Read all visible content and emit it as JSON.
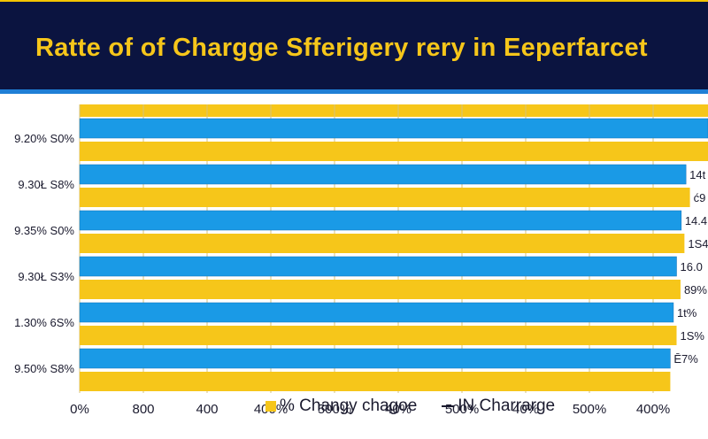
{
  "chart_data": {
    "type": "bar",
    "orientation": "horizontal",
    "title": "Ratte of of Chargge Sfferigery rery in Eeperfarcet",
    "categories": [
      "9.20% S0%",
      "9.30Ł S8%",
      "9.35% S0%",
      "9.30Ł S3%",
      "1.30% 6S%",
      "9.50% S8%"
    ],
    "series": [
      {
        "name": "IN Charrarge",
        "color": "#1a9ae6",
        "values": [
          800,
          772,
          766,
          760,
          756,
          752
        ]
      },
      {
        "name": "% Changy chagoe",
        "color": "#f6c61a",
        "values": [
          800,
          777,
          770,
          765,
          760,
          752
        ]
      }
    ],
    "data_labels": [
      [
        "",
        ""
      ],
      [
        "14t",
        "ć9"
      ],
      [
        "14.4",
        "1S4"
      ],
      [
        "16.0",
        "89%"
      ],
      [
        "1t%",
        "1S%"
      ],
      [
        "Ē7%",
        ""
      ]
    ],
    "x_ticks": [
      "0%",
      "800",
      "400",
      "400%",
      "500%",
      "40%",
      "500%",
      "40%",
      "500%",
      "400%"
    ],
    "xlim": [
      0,
      800
    ],
    "grid": true,
    "legend_position": "bottom-center",
    "background_color": "#ffffff",
    "title_band_color": "#0b1440"
  }
}
